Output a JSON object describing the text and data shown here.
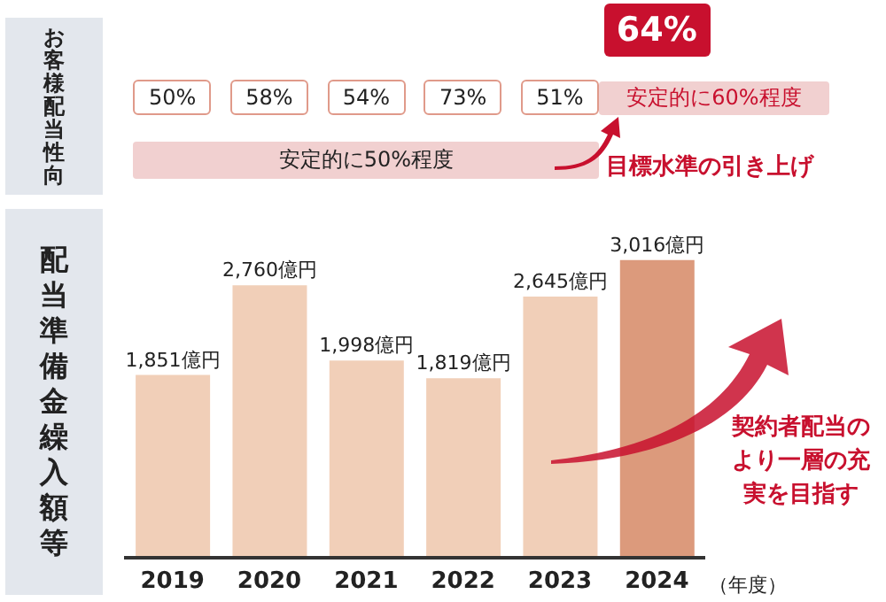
{
  "chart_data": {
    "type": "bar",
    "ylabel": "配当準備金繰入額等",
    "xlabel": "（年度）",
    "categories": [
      "2019",
      "2020",
      "2021",
      "2022",
      "2023",
      "2024"
    ],
    "values": [
      1851,
      2760,
      1998,
      1819,
      2645,
      3016
    ],
    "colors": [
      "#f1cfb8",
      "#f1cfb8",
      "#f1cfb8",
      "#f1cfb8",
      "#f1cfb8",
      "#dc9a7c"
    ],
    "value_labels": [
      "1,851億円",
      "2,760億円",
      "1,998億円",
      "1,819億円",
      "2,645億円",
      "3,016億円"
    ],
    "annotations": [
      "お客様配当性向",
      "50%",
      "58%",
      "54%",
      "73%",
      "51%",
      "64%",
      "安定的に50%程度",
      "安定的に60%程度",
      "目標水準の引き上げ",
      "契約者配当のより一層の充実を目指す"
    ]
  }
}
